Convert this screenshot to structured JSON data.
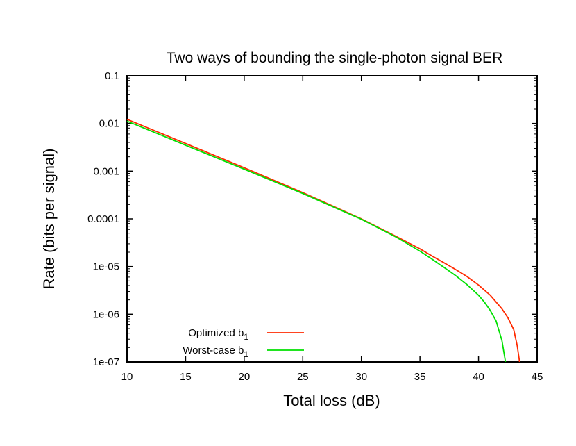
{
  "chart_data": {
    "type": "line",
    "title": "Two ways of bounding the single-photon signal BER",
    "xlabel": "Total loss (dB)",
    "ylabel": "Rate (bits per signal)",
    "xlim": [
      10,
      45
    ],
    "ylim": [
      1e-07,
      0.1
    ],
    "yscale": "log",
    "grid": false,
    "legend_position": "bottom-left",
    "x_ticks": [
      10,
      15,
      20,
      25,
      30,
      35,
      40,
      45
    ],
    "x_tick_labels": [
      "10",
      "15",
      "20",
      "25",
      "30",
      "35",
      "40",
      "45"
    ],
    "y_ticks": [
      1e-07,
      1e-06,
      1e-05,
      0.0001,
      0.001,
      0.01,
      0.1
    ],
    "y_tick_labels": [
      "1e-07",
      "1e-06",
      "1e-05",
      "0.0001",
      "0.001",
      "0.01",
      "0.1"
    ],
    "series": [
      {
        "name": "Optimized b",
        "name_subscript": "1",
        "color": "#ff2a00",
        "x": [
          10,
          15,
          20,
          25,
          30,
          33,
          35,
          36,
          37,
          38,
          39,
          40,
          41,
          42,
          42.5,
          43,
          43.3,
          43.5
        ],
        "y": [
          0.0122,
          0.0038,
          0.00118,
          0.000355,
          0.0001,
          4.25e-05,
          2.35e-05,
          1.68e-05,
          1.22e-05,
          8.8e-06,
          6.2e-06,
          4.1e-06,
          2.5e-06,
          1.3e-06,
          8.5e-07,
          4.8e-07,
          2.2e-07,
          1e-07
        ]
      },
      {
        "name": "Worst-case b",
        "name_subscript": "1",
        "color": "#00e000",
        "x": [
          10,
          15,
          20,
          25,
          30,
          33,
          35,
          36,
          37,
          38,
          39,
          40,
          40.5,
          41,
          41.5,
          42,
          42.3
        ],
        "y": [
          0.0112,
          0.0035,
          0.0011,
          0.00034,
          9.8e-05,
          4.1e-05,
          2.1e-05,
          1.45e-05,
          9.8e-06,
          6.6e-06,
          4.2e-06,
          2.5e-06,
          1.8e-06,
          1.2e-06,
          7.2e-07,
          2.8e-07,
          1e-07
        ]
      }
    ]
  }
}
